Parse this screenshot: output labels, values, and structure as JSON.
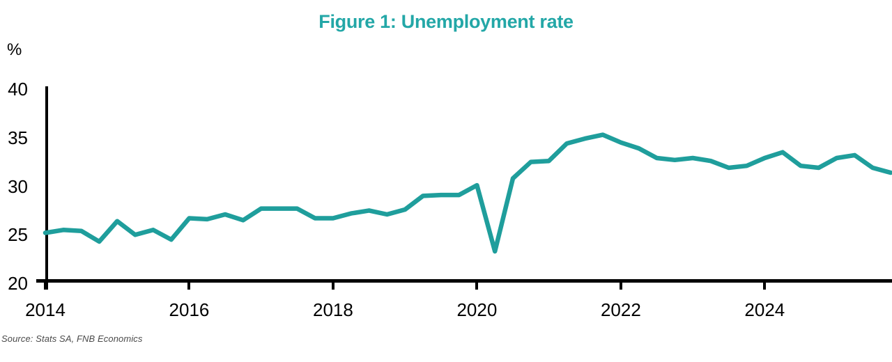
{
  "header": {
    "title": "Figure 1: Unemployment rate"
  },
  "chart_data": {
    "type": "line",
    "title": "Figure 1: Unemployment rate",
    "xlabel": "",
    "ylabel": "%",
    "series_name": "Unemployment rate",
    "x_quarters": [
      "2014Q1",
      "2014Q2",
      "2014Q3",
      "2014Q4",
      "2015Q1",
      "2015Q2",
      "2015Q3",
      "2015Q4",
      "2016Q1",
      "2016Q2",
      "2016Q3",
      "2016Q4",
      "2017Q1",
      "2017Q2",
      "2017Q3",
      "2017Q4",
      "2018Q1",
      "2018Q2",
      "2018Q3",
      "2018Q4",
      "2019Q1",
      "2019Q2",
      "2019Q3",
      "2019Q4",
      "2020Q1",
      "2020Q2",
      "2020Q3",
      "2020Q4",
      "2021Q1",
      "2021Q2",
      "2021Q3",
      "2021Q4",
      "2022Q1",
      "2022Q2",
      "2022Q3",
      "2022Q4",
      "2023Q1",
      "2023Q2",
      "2023Q3",
      "2023Q4",
      "2024Q1",
      "2024Q2",
      "2024Q3",
      "2024Q4",
      "2025Q1",
      "2025Q2",
      "2025Q3",
      "2025Q4"
    ],
    "values": [
      25.2,
      25.5,
      25.4,
      24.3,
      26.4,
      25.0,
      25.5,
      24.5,
      26.7,
      26.6,
      27.1,
      26.5,
      27.7,
      27.7,
      27.7,
      26.7,
      26.7,
      27.2,
      27.5,
      27.1,
      27.6,
      29.0,
      29.1,
      29.1,
      30.1,
      23.3,
      30.8,
      32.5,
      32.6,
      34.4,
      34.9,
      35.3,
      34.5,
      33.9,
      32.9,
      32.7,
      32.9,
      32.6,
      31.9,
      32.1,
      32.9,
      33.5,
      32.1,
      31.9,
      32.9,
      33.2,
      31.9,
      31.4
    ],
    "xticks": [
      2014,
      2016,
      2018,
      2020,
      2022,
      2024
    ],
    "yticks": [
      40,
      35,
      30,
      25,
      20
    ],
    "ylim": [
      20,
      40
    ],
    "grid": false,
    "legend_position": "none"
  },
  "colors": {
    "title": "#23A7A7",
    "line": "#1F9E9C",
    "axis": "#000000",
    "tick_labels": "#000000",
    "source_text": "#4a4a4a",
    "background": "#ffffff"
  },
  "source": {
    "text": "Source: Stats SA, FNB Economics"
  }
}
